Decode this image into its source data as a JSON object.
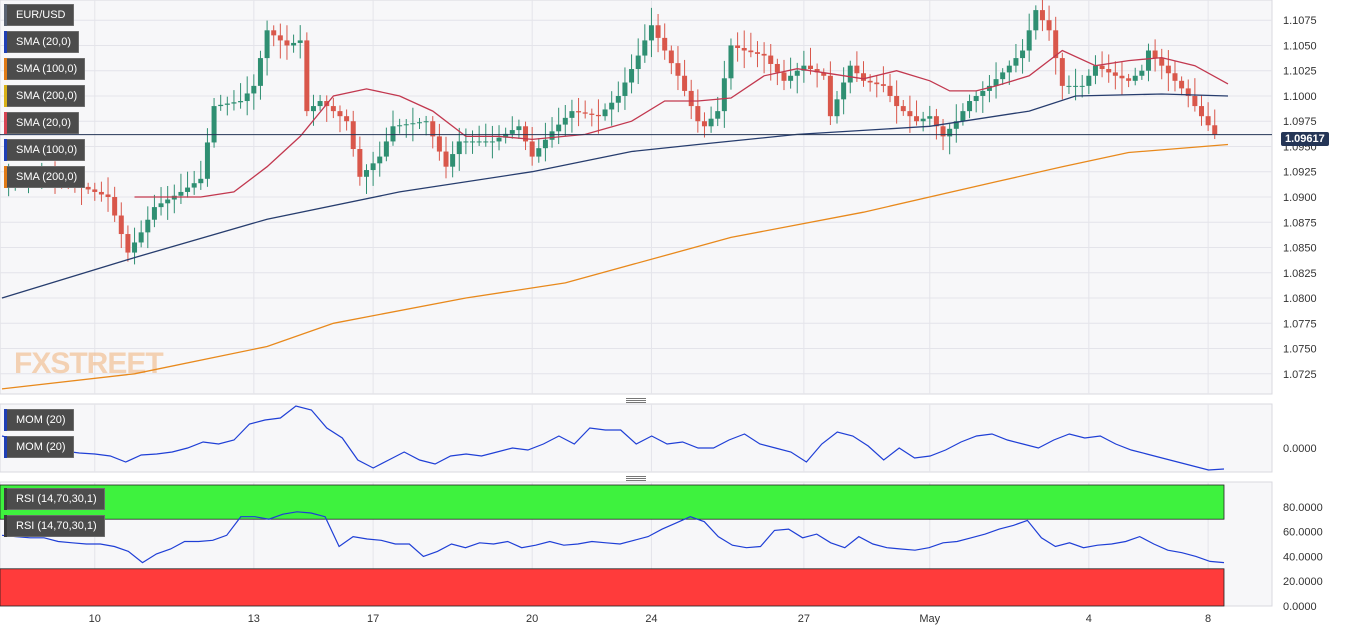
{
  "symbol": "EUR/USD",
  "current_price": "1.09617",
  "watermark": "FXSTREET",
  "legend_main": [
    {
      "label": "EUR/USD",
      "color": "#5b6473"
    },
    {
      "label": "SMA (20,0)",
      "color": "#1f3fb5"
    },
    {
      "label": "SMA (100,0)",
      "color": "#e07a16"
    },
    {
      "label": "SMA (200,0)",
      "color": "#d8b118"
    },
    {
      "label": "SMA (20,0)",
      "color": "#d64454"
    },
    {
      "label": "SMA (100,0)",
      "color": "#1f3fb5"
    },
    {
      "label": "SMA (200,0)",
      "color": "#e07a16"
    }
  ],
  "legend_mom": [
    {
      "label": "MOM (20)",
      "color": "#1f3fb5"
    },
    {
      "label": "MOM (20)",
      "color": "#1f3fb5"
    }
  ],
  "legend_rsi": [
    {
      "label": "RSI (14,70,30,1)",
      "color": "#3a3a3a"
    },
    {
      "label": "RSI (14,70,30,1)",
      "color": "#3a3a3a"
    }
  ],
  "colors": {
    "bull": "#2f8f72",
    "bear": "#d9574b",
    "sma20": "#c2384f",
    "sma100": "#273d6e",
    "sma200": "#e8891c",
    "mom": "#1f3fd6",
    "rsi": "#1f3fd6",
    "overbought": "#3ef23e",
    "oversold": "#ff3b3b",
    "price_line": "#243556"
  },
  "chart_data": [
    {
      "type": "candlestick",
      "title": "EUR/USD",
      "interval": "4H",
      "x_tick_labels": [
        "10",
        "13",
        "17",
        "20",
        "24",
        "27",
        "May",
        "4",
        "8",
        "10"
      ],
      "y_ticks": [
        "1.0725",
        "1.0750",
        "1.0775",
        "1.0800",
        "1.0825",
        "1.0850",
        "1.0875",
        "1.0900",
        "1.0925",
        "1.0950",
        "1.0975",
        "1.1000",
        "1.1025",
        "1.1050",
        "1.1075"
      ],
      "ylim": [
        1.0705,
        1.1095
      ],
      "last_price": 1.09617,
      "close_path": [
        [
          0,
          1.0915
        ],
        [
          7,
          1.0922
        ],
        [
          12,
          1.091
        ],
        [
          16,
          1.09
        ],
        [
          19,
          1.0845
        ],
        [
          21,
          1.0865
        ],
        [
          23,
          1.089
        ],
        [
          27,
          1.0905
        ],
        [
          30,
          1.0918
        ],
        [
          32,
          1.099
        ],
        [
          36,
          1.0995
        ],
        [
          38,
          1.101
        ],
        [
          40,
          1.1065
        ],
        [
          43,
          1.105
        ],
        [
          45,
          1.1055
        ],
        [
          46,
          1.0985
        ],
        [
          48,
          1.0995
        ],
        [
          52,
          1.0975
        ],
        [
          54,
          1.092
        ],
        [
          57,
          1.094
        ],
        [
          59,
          1.097
        ],
        [
          64,
          1.0975
        ],
        [
          67,
          1.093
        ],
        [
          69,
          1.0955
        ],
        [
          74,
          1.0955
        ],
        [
          78,
          1.097
        ],
        [
          80,
          1.094
        ],
        [
          83,
          1.0965
        ],
        [
          86,
          1.0985
        ],
        [
          90,
          1.098
        ],
        [
          93,
          1.1
        ],
        [
          96,
          1.104
        ],
        [
          98,
          1.107
        ],
        [
          100,
          1.1045
        ],
        [
          102,
          1.102
        ],
        [
          105,
          1.0975
        ],
        [
          106,
          1.097
        ],
        [
          108,
          1.0985
        ],
        [
          110,
          1.105
        ],
        [
          112,
          1.1045
        ],
        [
          115,
          1.104
        ],
        [
          118,
          1.1015
        ],
        [
          121,
          1.103
        ],
        [
          124,
          1.102
        ],
        [
          125,
          1.098
        ],
        [
          128,
          1.103
        ],
        [
          130,
          1.1015
        ],
        [
          133,
          1.101
        ],
        [
          135,
          1.099
        ],
        [
          138,
          1.0975
        ],
        [
          140,
          1.098
        ],
        [
          142,
          1.096
        ],
        [
          144,
          1.0975
        ],
        [
          146,
          1.0995
        ],
        [
          149,
          1.101
        ],
        [
          152,
          1.103
        ],
        [
          154,
          1.1045
        ],
        [
          156,
          1.1085
        ],
        [
          158,
          1.1065
        ],
        [
          160,
          1.101
        ],
        [
          163,
          1.101
        ],
        [
          165,
          1.103
        ],
        [
          168,
          1.102
        ],
        [
          170,
          1.1015
        ],
        [
          172,
          1.1025
        ],
        [
          173,
          1.1045
        ],
        [
          175,
          1.103
        ],
        [
          177,
          1.1015
        ],
        [
          179,
          1.1
        ],
        [
          181,
          1.098
        ],
        [
          183,
          1.0962
        ]
      ],
      "sma20": [
        [
          20,
          1.09
        ],
        [
          30,
          1.09
        ],
        [
          35,
          1.0905
        ],
        [
          40,
          1.093
        ],
        [
          45,
          1.096
        ],
        [
          50,
          1.1
        ],
        [
          55,
          1.1007
        ],
        [
          60,
          1.1
        ],
        [
          65,
          1.0985
        ],
        [
          70,
          1.096
        ],
        [
          75,
          1.096
        ],
        [
          80,
          1.0957
        ],
        [
          88,
          1.0962
        ],
        [
          95,
          1.0975
        ],
        [
          100,
          1.0995
        ],
        [
          105,
          1.0995
        ],
        [
          110,
          1.0998
        ],
        [
          115,
          1.102
        ],
        [
          120,
          1.1027
        ],
        [
          125,
          1.1022
        ],
        [
          130,
          1.1017
        ],
        [
          135,
          1.1025
        ],
        [
          140,
          1.1015
        ],
        [
          143,
          1.1005
        ],
        [
          147,
          1.1005
        ],
        [
          150,
          1.101
        ],
        [
          155,
          1.102
        ],
        [
          160,
          1.1045
        ],
        [
          165,
          1.103
        ],
        [
          170,
          1.1035
        ],
        [
          175,
          1.1038
        ],
        [
          180,
          1.103
        ],
        [
          185,
          1.1012
        ]
      ],
      "sma100": [
        [
          0,
          1.08
        ],
        [
          20,
          1.084
        ],
        [
          40,
          1.0878
        ],
        [
          60,
          1.0905
        ],
        [
          80,
          1.0925
        ],
        [
          95,
          1.0945
        ],
        [
          105,
          1.0952
        ],
        [
          120,
          1.0962
        ],
        [
          140,
          1.097
        ],
        [
          155,
          1.0985
        ],
        [
          162,
          1.1
        ],
        [
          175,
          1.1002
        ],
        [
          185,
          1.1
        ]
      ],
      "sma200": [
        [
          0,
          1.071
        ],
        [
          20,
          1.0725
        ],
        [
          40,
          1.0752
        ],
        [
          50,
          1.0775
        ],
        [
          70,
          1.08
        ],
        [
          85,
          1.0815
        ],
        [
          110,
          1.086
        ],
        [
          130,
          1.0885
        ],
        [
          150,
          1.0915
        ],
        [
          160,
          1.093
        ],
        [
          170,
          1.0944
        ],
        [
          185,
          1.0952
        ]
      ]
    },
    {
      "type": "line",
      "title": "MOM (20)",
      "y_ticks": [
        "0.0000"
      ],
      "values": [
        0.006,
        0.004,
        0.001,
        -0.001,
        -0.0015,
        -0.0025,
        -0.003,
        -0.004,
        -0.007,
        -0.0035,
        -0.003,
        -0.002,
        0.0,
        0.003,
        0.002,
        0.004,
        0.012,
        0.014,
        0.015,
        0.021,
        0.019,
        0.01,
        0.005,
        -0.006,
        -0.01,
        -0.006,
        -0.002,
        -0.006,
        -0.008,
        -0.004,
        -0.003,
        -0.004,
        -0.002,
        0.0,
        -0.001,
        0.002,
        0.006,
        0.002,
        0.01,
        0.009,
        0.009,
        0.002,
        0.006,
        0.002,
        0.003,
        0.0,
        0.0,
        0.004,
        0.007,
        0.002,
        0.0,
        -0.002,
        -0.007,
        0.002,
        0.008,
        0.006,
        0.001,
        -0.006,
        0.0,
        -0.005,
        -0.004,
        -0.001,
        0.003,
        0.006,
        0.007,
        0.004,
        0.002,
        0.0,
        0.004,
        0.007,
        0.005,
        0.006,
        0.002,
        -0.001,
        -0.003,
        -0.005,
        -0.007,
        -0.009,
        -0.011,
        -0.0105
      ]
    },
    {
      "type": "line",
      "title": "RSI (14,70,30,1)",
      "y_ticks": [
        "0.0000",
        "20.0000",
        "40.0000",
        "60.0000",
        "80.0000"
      ],
      "ylim": [
        0,
        100
      ],
      "overbought": 70,
      "oversold": 30,
      "values": [
        57,
        56,
        55,
        55,
        52,
        51,
        50,
        50,
        48,
        44,
        35,
        42,
        46,
        52,
        52,
        53,
        57,
        72,
        72,
        70,
        74,
        76,
        75,
        72,
        48,
        56,
        54,
        53,
        50,
        50,
        40,
        44,
        50,
        47,
        51,
        50,
        52,
        47,
        49,
        52,
        49,
        50,
        52,
        51,
        50,
        53,
        56,
        62,
        67,
        72,
        68,
        56,
        49,
        47,
        48,
        61,
        62,
        55,
        58,
        51,
        47,
        56,
        50,
        47,
        46,
        45,
        47,
        51,
        52,
        55,
        58,
        62,
        65,
        69,
        55,
        48,
        51,
        47,
        49,
        50,
        52,
        56,
        50,
        45,
        43,
        40,
        36,
        35
      ]
    }
  ]
}
